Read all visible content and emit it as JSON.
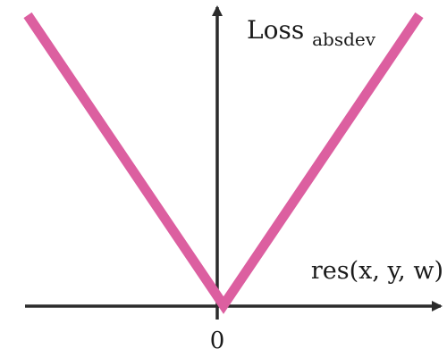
{
  "chart_data": {
    "type": "line",
    "title": "",
    "xlabel": "res(x, y, w)",
    "ylabel": {
      "main": "Loss",
      "subscript": "absdev"
    },
    "x_tick_labels": [
      "0"
    ],
    "x": [
      -1,
      0,
      1
    ],
    "series": [
      {
        "values": [
          1,
          0,
          1
        ]
      }
    ],
    "xlim": [
      -1,
      1
    ],
    "ylim": [
      0,
      1
    ],
    "grid": false,
    "colors": {
      "series": "#dc5fa0",
      "axes": "#2b2b2b"
    }
  }
}
